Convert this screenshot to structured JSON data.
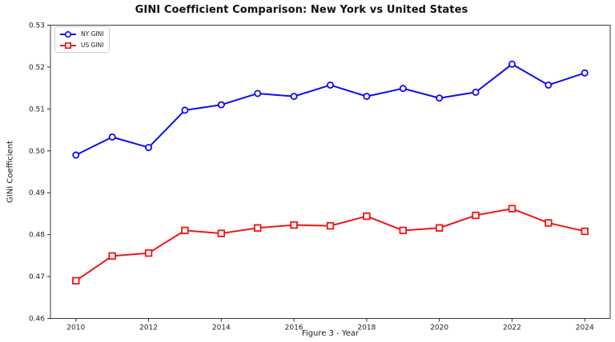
{
  "chart_data": {
    "type": "line",
    "title": "GINI Coefficient Comparison: New York vs United States",
    "xlabel": "Figure 3 - Year",
    "ylabel": "GINI Coefficient",
    "x": [
      2010,
      2011,
      2012,
      2013,
      2014,
      2015,
      2016,
      2017,
      2018,
      2019,
      2020,
      2021,
      2022,
      2023,
      2024
    ],
    "series": [
      {
        "name": "NY GINI",
        "color": "#0d0dee",
        "marker": "circle",
        "values": [
          0.499,
          0.5033,
          0.5008,
          0.5097,
          0.511,
          0.5137,
          0.513,
          0.5157,
          0.513,
          0.5149,
          0.5126,
          0.514,
          0.5207,
          0.5157,
          0.5186
        ]
      },
      {
        "name": "US GINI",
        "color": "#f01414",
        "marker": "square",
        "values": [
          0.469,
          0.4749,
          0.4756,
          0.481,
          0.4803,
          0.4816,
          0.4823,
          0.4821,
          0.4844,
          0.481,
          0.4816,
          0.4846,
          0.4862,
          0.4828,
          0.4808
        ]
      }
    ],
    "xlim": [
      2009.3,
      2024.7
    ],
    "ylim": [
      0.46,
      0.53
    ],
    "x_ticks": [
      2010,
      2012,
      2014,
      2016,
      2018,
      2020,
      2022,
      2024
    ],
    "x_tick_labels": [
      "2010",
      "2012",
      "2014",
      "2016",
      "2018",
      "2020",
      "2022",
      "2024"
    ],
    "y_ticks": [
      0.46,
      0.47,
      0.48,
      0.49,
      0.5,
      0.51,
      0.52,
      0.53
    ],
    "y_tick_labels": [
      "0.46",
      "0.47",
      "0.48",
      "0.49",
      "0.50",
      "0.51",
      "0.52",
      "0.53"
    ],
    "grid": false,
    "legend_position": "upper-left",
    "colors": {
      "figure_background": "#ffffff",
      "plot_background": "#ffffff",
      "spine": "#3c3c3c",
      "tick": "#2a2a2a",
      "tick_label": "#1f1f1f",
      "legend_border": "#cccccc"
    }
  }
}
